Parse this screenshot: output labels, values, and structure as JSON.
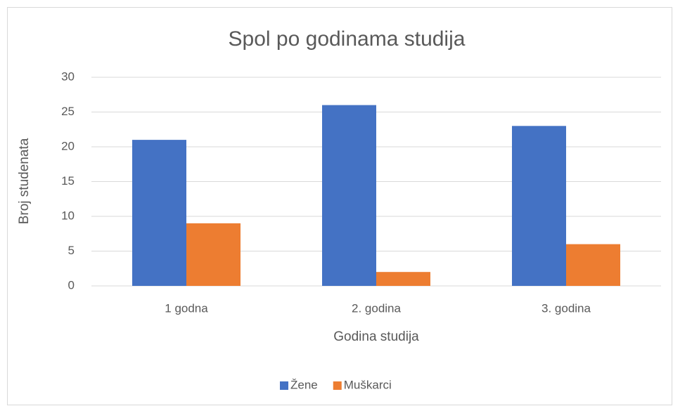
{
  "chart_data": {
    "type": "bar",
    "title": "Spol po godinama studija",
    "x_label": "Godina studija",
    "y_label": "Broj studenata",
    "categories": [
      "1 godna",
      "2. godina",
      "3. godina"
    ],
    "series": [
      {
        "name": "Žene",
        "color": "#4472c4",
        "values": [
          21,
          26,
          23
        ]
      },
      {
        "name": "Muškarci",
        "color": "#ed7d31",
        "values": [
          9,
          2,
          6
        ]
      }
    ],
    "ylim": [
      0,
      30
    ],
    "yticks": [
      0,
      5,
      10,
      15,
      20,
      25,
      30
    ],
    "grid": true,
    "legend": "bottom"
  }
}
